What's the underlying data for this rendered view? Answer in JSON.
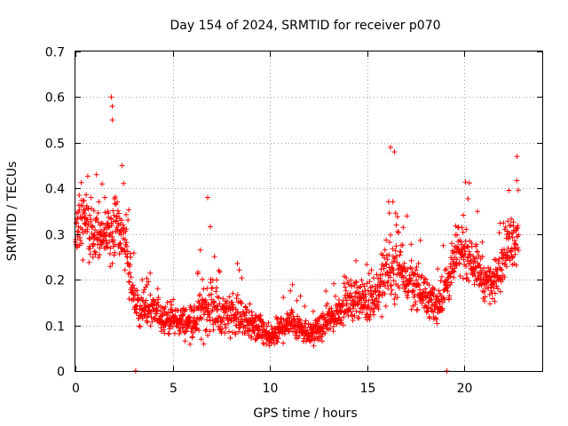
{
  "chart_data": {
    "type": "scatter",
    "title": "Day 154 of 2024, SRMTID for receiver p070",
    "xlabel": "GPS time / hours",
    "ylabel": "SRMTID / TECUs",
    "xlim": [
      0,
      24
    ],
    "ylim": [
      0,
      0.7
    ],
    "xticks": [
      0,
      5,
      10,
      15,
      20
    ],
    "yticks": [
      0,
      0.1,
      0.2,
      0.3,
      0.4,
      0.5,
      0.6,
      0.7
    ],
    "grid": true,
    "marker": "+",
    "color": "#ff0000",
    "series": [
      {
        "name": "SRMTID",
        "hours": [
          0.0,
          0.5,
          1.0,
          1.5,
          2.0,
          2.5,
          3.0,
          3.5,
          4.0,
          4.5,
          5.0,
          5.5,
          6.0,
          6.5,
          7.0,
          7.5,
          8.0,
          8.5,
          9.0,
          9.5,
          10.0,
          10.5,
          11.0,
          11.5,
          12.0,
          12.5,
          13.0,
          13.5,
          14.0,
          14.5,
          15.0,
          15.5,
          16.0,
          16.5,
          17.0,
          17.5,
          18.0,
          18.5,
          19.0,
          19.5,
          20.0,
          20.5,
          21.0,
          21.5,
          22.0,
          22.5,
          22.8
        ],
        "center": [
          0.3,
          0.33,
          0.3,
          0.29,
          0.32,
          0.29,
          0.15,
          0.13,
          0.13,
          0.12,
          0.11,
          0.11,
          0.1,
          0.13,
          0.15,
          0.12,
          0.13,
          0.12,
          0.1,
          0.09,
          0.07,
          0.09,
          0.11,
          0.1,
          0.08,
          0.09,
          0.11,
          0.13,
          0.15,
          0.16,
          0.15,
          0.17,
          0.22,
          0.23,
          0.2,
          0.19,
          0.16,
          0.14,
          0.18,
          0.24,
          0.27,
          0.24,
          0.2,
          0.19,
          0.26,
          0.29,
          0.3
        ],
        "spread": [
          0.07,
          0.08,
          0.06,
          0.06,
          0.1,
          0.07,
          0.05,
          0.04,
          0.04,
          0.04,
          0.04,
          0.04,
          0.04,
          0.07,
          0.08,
          0.05,
          0.06,
          0.05,
          0.04,
          0.04,
          0.03,
          0.04,
          0.04,
          0.04,
          0.03,
          0.03,
          0.04,
          0.04,
          0.05,
          0.05,
          0.05,
          0.06,
          0.09,
          0.09,
          0.07,
          0.06,
          0.05,
          0.05,
          0.06,
          0.06,
          0.07,
          0.06,
          0.05,
          0.05,
          0.07,
          0.07,
          0.08
        ],
        "notable_points": [
          {
            "x": 1.85,
            "y": 0.6
          },
          {
            "x": 1.9,
            "y": 0.58
          },
          {
            "x": 1.9,
            "y": 0.55
          },
          {
            "x": 16.2,
            "y": 0.49
          },
          {
            "x": 16.4,
            "y": 0.48
          },
          {
            "x": 6.8,
            "y": 0.38
          },
          {
            "x": 22.7,
            "y": 0.47
          },
          {
            "x": 3.1,
            "y": 0.0
          },
          {
            "x": 19.1,
            "y": 0.0
          }
        ]
      }
    ]
  }
}
